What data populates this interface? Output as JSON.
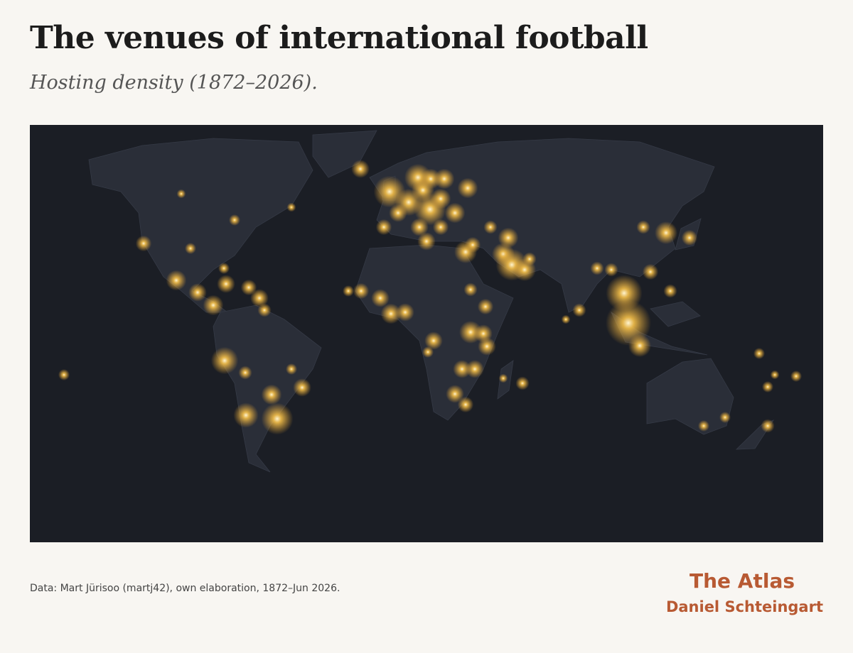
{
  "header": {
    "title": "The venues of international football",
    "subtitle": "Hosting density (1872–2026)."
  },
  "footer": {
    "source": "Data: Mart Jürisoo (martj42), own elaboration, 1872–Jun 2026.",
    "brand": "The Atlas",
    "author": "Daniel Schteingart"
  }
}
